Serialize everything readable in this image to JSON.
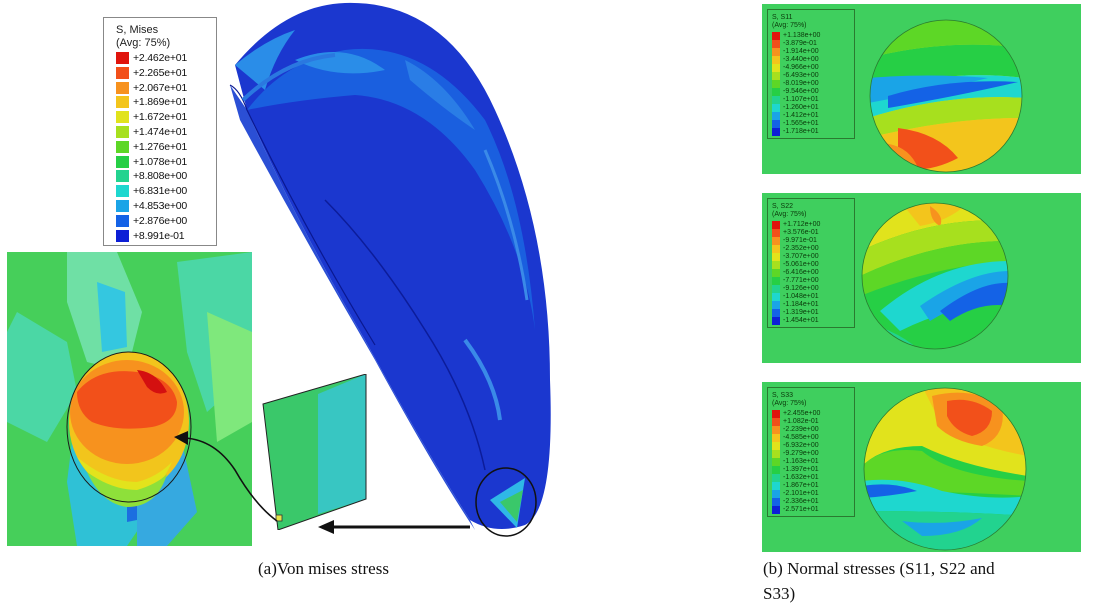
{
  "main_legend": {
    "title_line1": "S, Mises",
    "title_line2": "(Avg: 75%)",
    "entries": [
      {
        "label": "+2.462e+01",
        "color": "#e0140c"
      },
      {
        "label": "+2.265e+01",
        "color": "#f2501a"
      },
      {
        "label": "+2.067e+01",
        "color": "#f7921e"
      },
      {
        "label": "+1.869e+01",
        "color": "#f3c51c"
      },
      {
        "label": "+1.672e+01",
        "color": "#e1e31c"
      },
      {
        "label": "+1.474e+01",
        "color": "#a7e01e"
      },
      {
        "label": "+1.276e+01",
        "color": "#5dd726"
      },
      {
        "label": "+1.078e+01",
        "color": "#26cf45"
      },
      {
        "label": "+8.808e+00",
        "color": "#22d38f"
      },
      {
        "label": "+6.831e+00",
        "color": "#1ed7cf"
      },
      {
        "label": "+4.853e+00",
        "color": "#1aa4e7"
      },
      {
        "label": "+2.876e+00",
        "color": "#1462e6"
      },
      {
        "label": "+8.991e-01",
        "color": "#0d1fd6"
      }
    ]
  },
  "panels": [
    {
      "title_line1": "S, S11",
      "title_line2": "(Avg: 75%)",
      "labels": [
        "+1.138e+00",
        "-3.879e-01",
        "-1.914e+00",
        "-3.440e+00",
        "-4.966e+00",
        "-6.493e+00",
        "-8.019e+00",
        "-9.546e+00",
        "-1.107e+01",
        "-1.260e+01",
        "-1.412e+01",
        "-1.565e+01",
        "-1.718e+01"
      ]
    },
    {
      "title_line1": "S, S22",
      "title_line2": "(Avg: 75%)",
      "labels": [
        "+1.712e+00",
        "+3.576e-01",
        "-9.971e-01",
        "-2.352e+00",
        "-3.707e+00",
        "-5.061e+00",
        "-6.416e+00",
        "-7.771e+00",
        "-9.126e+00",
        "-1.048e+01",
        "-1.184e+01",
        "-1.319e+01",
        "-1.454e+01"
      ]
    },
    {
      "title_line1": "S, S33",
      "title_line2": "(Avg: 75%)",
      "labels": [
        "+2.455e+00",
        "+1.082e-01",
        "-2.239e+00",
        "-4.585e+00",
        "-6.932e+00",
        "-9.279e+00",
        "-1.163e+01",
        "-1.397e+01",
        "-1.632e+01",
        "-1.867e+01",
        "-2.101e+01",
        "-2.336e+01",
        "-2.571e+01"
      ]
    }
  ],
  "captions": {
    "left": "(a)Von mises stress",
    "right_line1": "(b)  Normal  stresses  (S11,  S22  and",
    "right_line2": "S33)"
  },
  "colors": {
    "background_green": "#3fcf5e",
    "shell_blue": "#1a3ad8",
    "arrow": "#111111"
  }
}
